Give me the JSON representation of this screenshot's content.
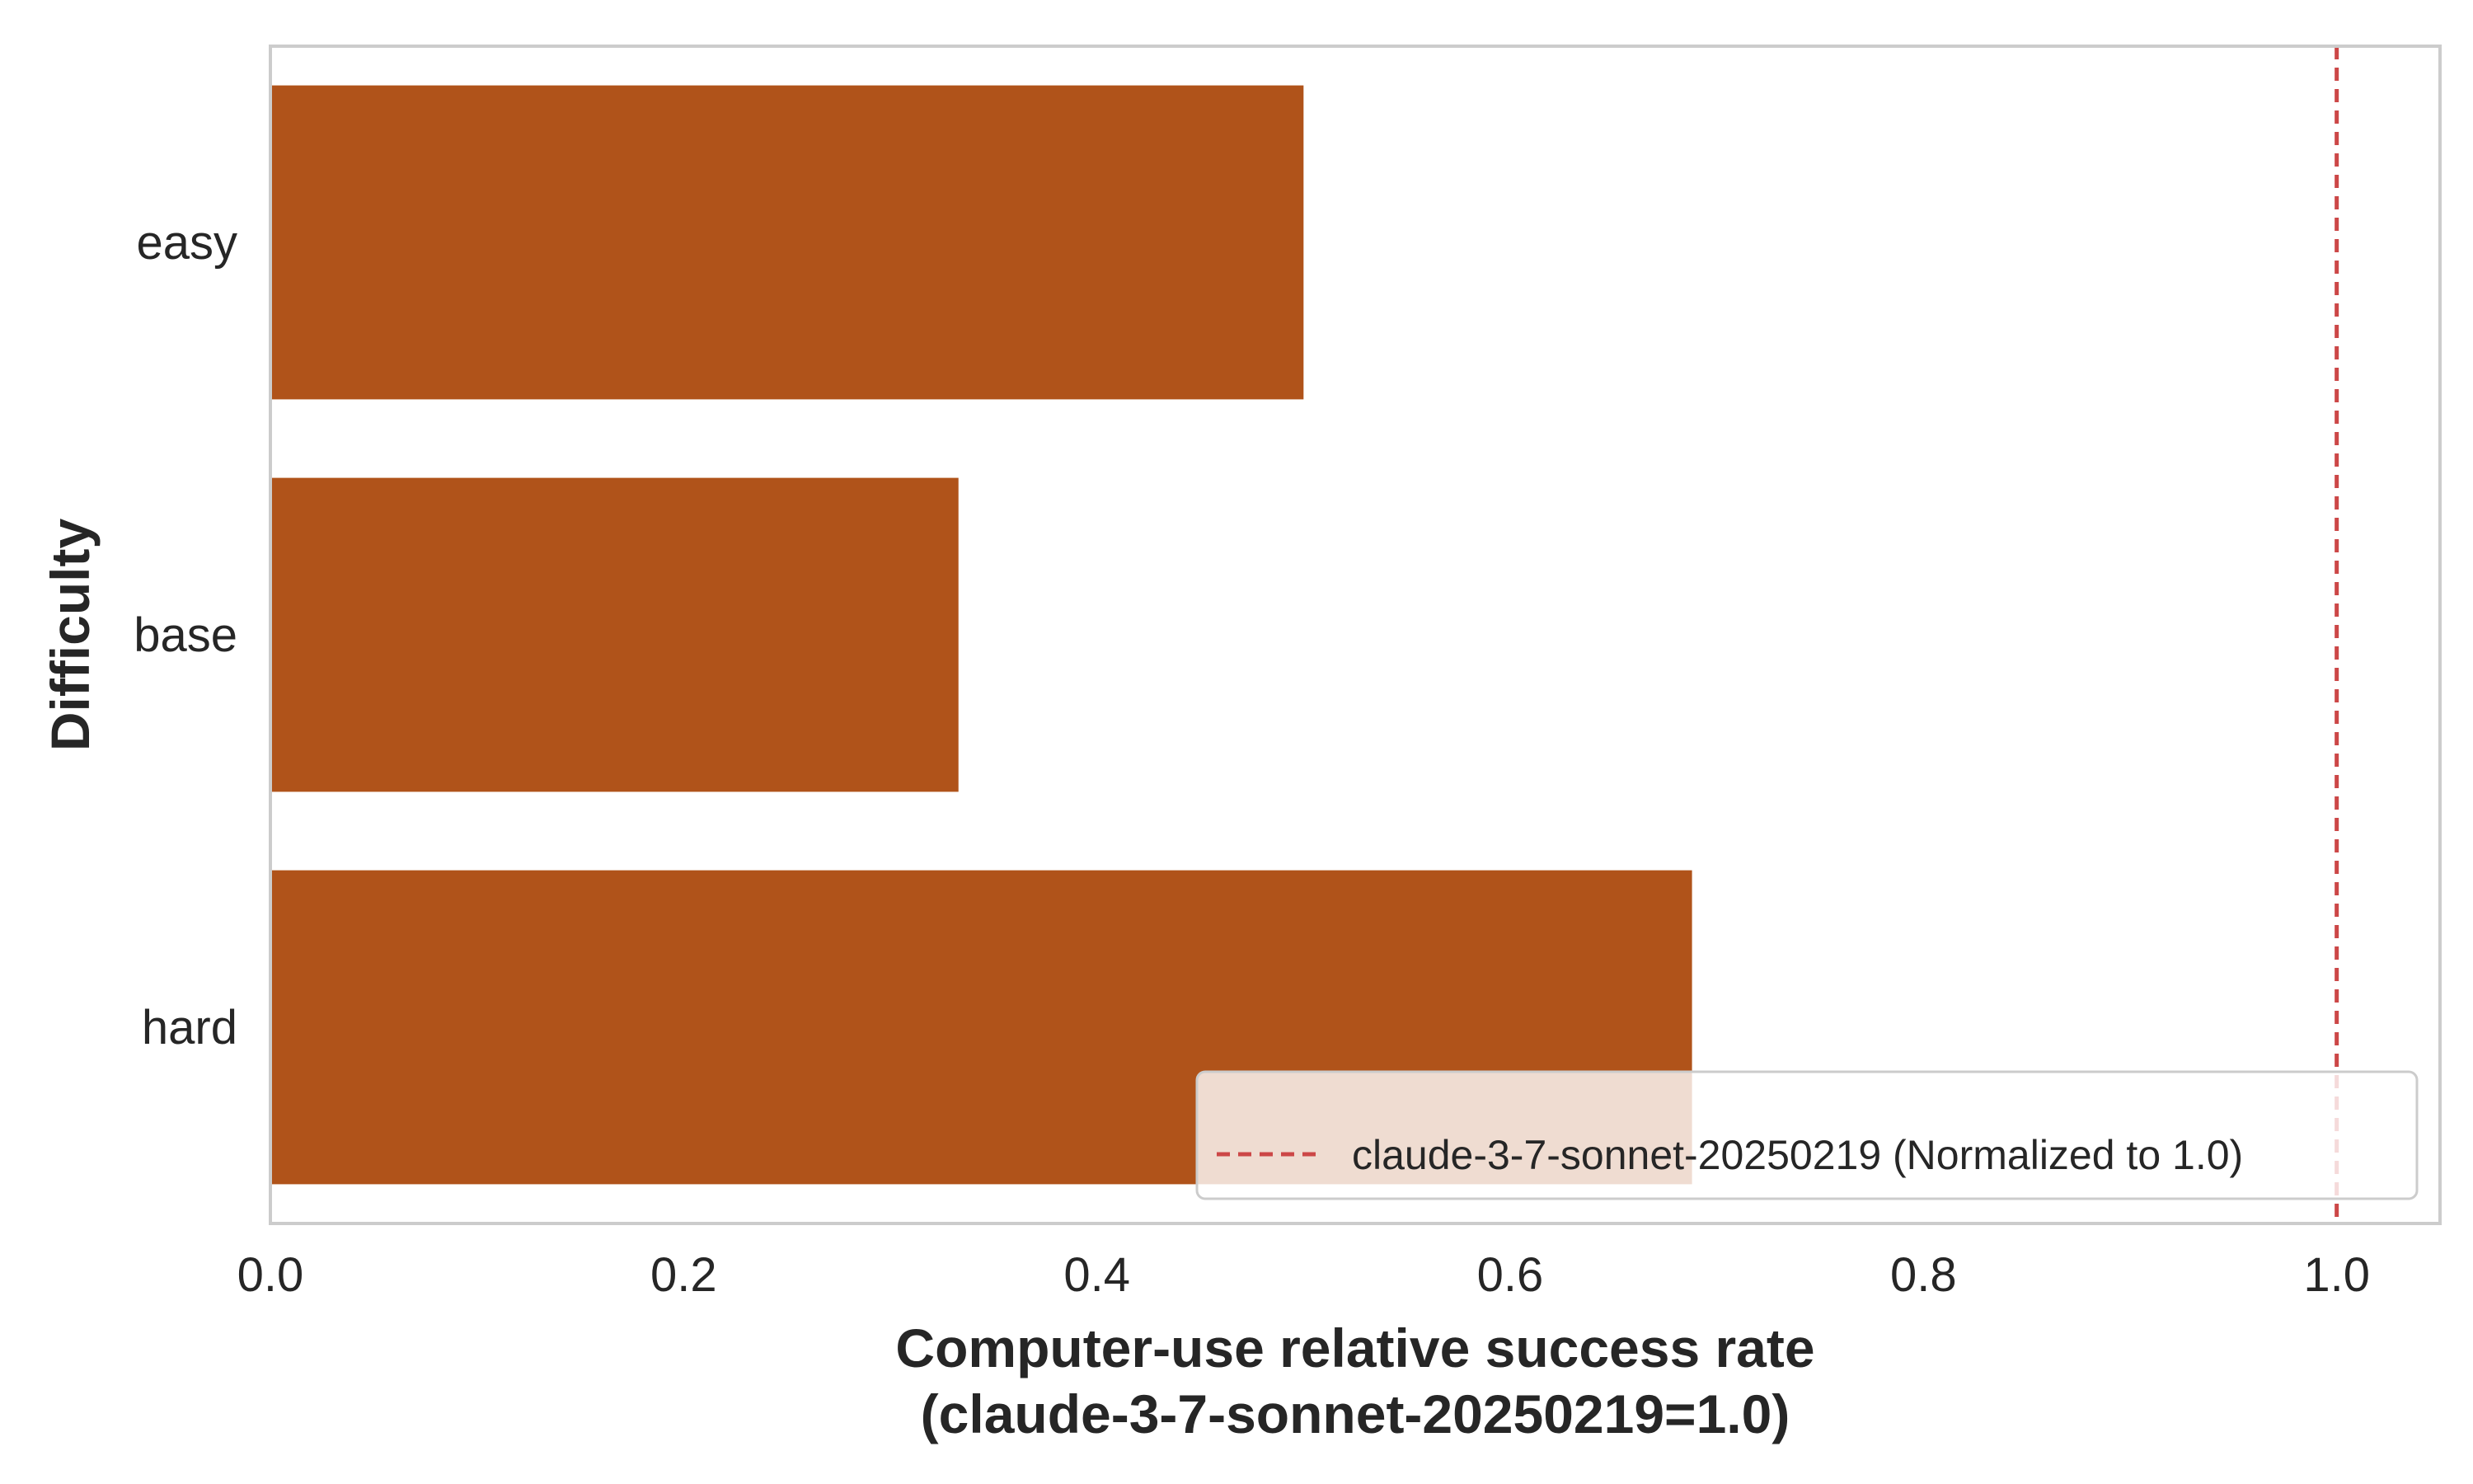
{
  "chart_data": {
    "type": "bar",
    "orientation": "horizontal",
    "categories": [
      "easy",
      "base",
      "hard"
    ],
    "values": [
      0.5,
      0.333,
      0.688
    ],
    "bar_color": "#b0531a",
    "xlim": [
      0.0,
      1.05
    ],
    "xticks": [
      "0.0",
      "0.2",
      "0.4",
      "0.6",
      "0.8",
      "1.0"
    ],
    "xlabel_line1": "Computer-use relative success rate",
    "xlabel_line2": "(claude-3-7-sonnet-20250219=1.0)",
    "ylabel": "Difficulty",
    "grid": false,
    "reference_line": {
      "value": 1.0,
      "color": "#cc4747",
      "label": "claude-3-7-sonnet-20250219 (Normalized to 1.0)"
    },
    "legend_position": "lower-right"
  }
}
